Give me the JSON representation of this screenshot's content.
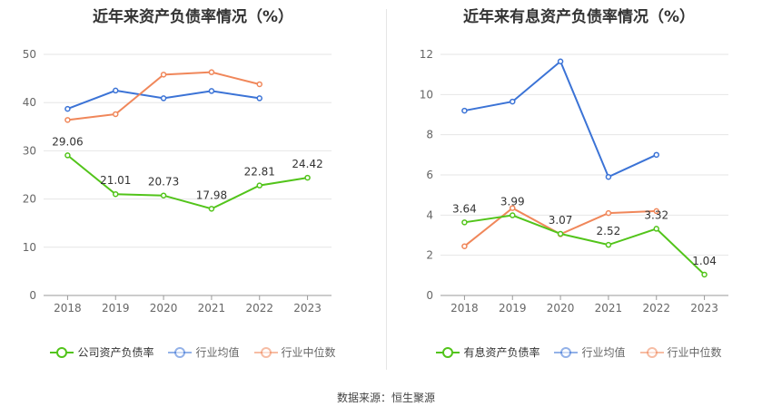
{
  "source": "数据来源：恒生聚源",
  "chart_data": [
    {
      "type": "line",
      "title": "近年来资产负债率情况（%）",
      "x": [
        "2018",
        "2019",
        "2020",
        "2021",
        "2022",
        "2023"
      ],
      "ylim": [
        0,
        50
      ],
      "yticks": [
        0,
        10,
        20,
        30,
        40,
        50
      ],
      "grid": true,
      "legend_position": "bottom",
      "series": [
        {
          "name": "公司资产负债率",
          "color": "#52c41a",
          "values": [
            29.06,
            21.01,
            20.73,
            17.98,
            22.81,
            24.42
          ],
          "labels": [
            "29.06",
            "21.01",
            "20.73",
            "17.98",
            "22.81",
            "24.42"
          ]
        },
        {
          "name": "行业均值",
          "color": "#3b73d6",
          "values": [
            38.7,
            42.5,
            40.9,
            42.4,
            40.9,
            null
          ]
        },
        {
          "name": "行业中位数",
          "color": "#f0875a",
          "values": [
            36.4,
            37.6,
            45.8,
            46.3,
            43.8,
            null
          ]
        }
      ]
    },
    {
      "type": "line",
      "title": "近年来有息资产负债率情况（%）",
      "x": [
        "2018",
        "2019",
        "2020",
        "2021",
        "2022",
        "2023"
      ],
      "ylim": [
        0,
        12
      ],
      "yticks": [
        0,
        2,
        4,
        6,
        8,
        10,
        12
      ],
      "grid": true,
      "legend_position": "bottom",
      "series": [
        {
          "name": "有息资产负债率",
          "color": "#52c41a",
          "values": [
            3.64,
            3.99,
            3.07,
            2.52,
            3.32,
            1.04
          ],
          "labels": [
            "3.64",
            "3.99",
            "3.07",
            "2.52",
            "3.32",
            "1.04"
          ]
        },
        {
          "name": "行业均值",
          "color": "#3b73d6",
          "values": [
            9.2,
            9.65,
            11.65,
            5.9,
            7.0,
            null
          ]
        },
        {
          "name": "行业中位数",
          "color": "#f0875a",
          "values": [
            2.45,
            4.35,
            3.05,
            4.1,
            4.2,
            null
          ]
        }
      ]
    }
  ]
}
